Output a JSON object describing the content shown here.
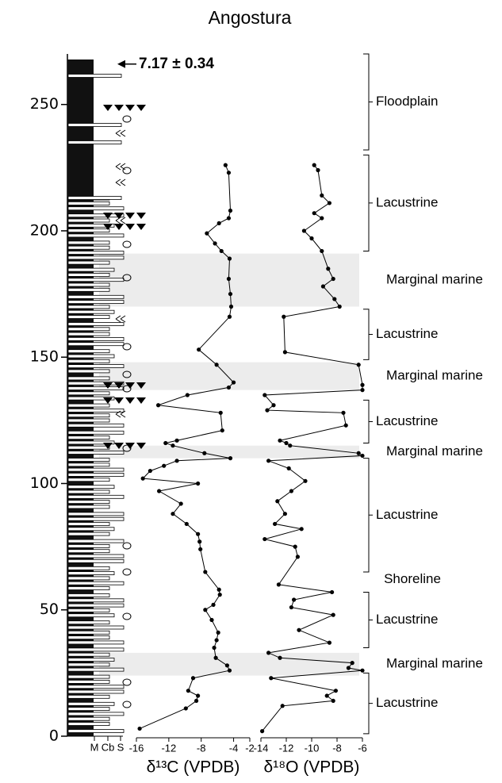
{
  "chart_data": {
    "type": "line",
    "title": "Angostura",
    "ylim": [
      0,
      270
    ],
    "yticks": [
      0,
      50,
      100,
      150,
      200,
      250
    ],
    "annotation": "7.17 ± 0.34",
    "annotation_height": 266,
    "column_labels": [
      "M",
      "Cb",
      "S"
    ],
    "panels": [
      {
        "xlabel": "δ¹³C (VPDB)",
        "xlim": [
          -16,
          -2
        ],
        "xticks": [
          -16,
          -12,
          -8,
          -4,
          -2
        ],
        "color": "#000000",
        "heights": [
          226,
          223,
          208,
          205,
          203,
          199,
          195,
          192,
          189,
          181,
          175,
          170,
          166,
          153,
          147,
          140,
          138,
          135,
          131,
          128,
          121,
          117,
          116,
          115,
          112,
          110,
          109,
          107,
          105,
          102,
          100,
          97,
          92,
          88,
          84,
          80,
          77,
          74,
          65,
          58,
          56,
          52,
          50,
          46,
          41,
          38,
          35,
          31,
          28,
          26,
          23,
          18,
          16,
          14,
          11,
          3
        ],
        "values": [
          -5.0,
          -4.6,
          -4.4,
          -4.6,
          -5.8,
          -7.3,
          -6.3,
          -5.5,
          -4.5,
          -4.6,
          -4.4,
          -4.3,
          -4.5,
          -8.3,
          -6.1,
          -4.0,
          -4.6,
          -9.7,
          -13.3,
          -5.6,
          -5.4,
          -11.0,
          -12.4,
          -11.5,
          -7.6,
          -4.4,
          -11.0,
          -12.6,
          -14.3,
          -15.2,
          -8.4,
          -13.2,
          -10.5,
          -11.5,
          -9.8,
          -8.4,
          -8.2,
          -8.1,
          -7.5,
          -5.8,
          -5.7,
          -6.5,
          -7.5,
          -6.7,
          -5.9,
          -6.1,
          -6.4,
          -6.2,
          -4.8,
          -4.5,
          -9.0,
          -9.6,
          -8.4,
          -8.6,
          -9.9,
          -15.6
        ]
      },
      {
        "xlabel": "δ¹⁸O (VPDB)",
        "xlim": [
          -14,
          -6
        ],
        "xticks": [
          -14,
          -12,
          -10,
          -8,
          -6
        ],
        "color": "#000000",
        "heights": [
          226,
          224,
          214,
          211,
          207,
          205,
          200,
          197,
          192,
          185,
          181,
          178,
          173,
          170,
          166,
          152,
          147,
          139,
          137,
          135,
          131,
          129,
          128,
          123,
          117,
          116,
          115,
          112,
          111,
          109,
          106,
          101,
          97,
          93,
          88,
          84,
          82,
          78,
          75,
          71,
          60,
          57,
          54,
          51,
          48,
          42,
          37,
          33,
          31,
          29,
          27,
          26,
          23,
          18,
          16,
          14,
          12,
          2
        ],
        "values": [
          -9.8,
          -9.5,
          -9.2,
          -8.6,
          -9.8,
          -9.2,
          -10.6,
          -10.0,
          -9.2,
          -8.7,
          -8.3,
          -9.1,
          -8.2,
          -7.8,
          -12.2,
          -12.1,
          -6.3,
          -6.0,
          -6.0,
          -13.7,
          -13.0,
          -13.5,
          -7.5,
          -7.3,
          -12.5,
          -12.0,
          -11.7,
          -6.3,
          -6.0,
          -13.4,
          -11.8,
          -10.5,
          -11.6,
          -12.7,
          -12.1,
          -12.9,
          -10.8,
          -13.7,
          -11.3,
          -11.1,
          -12.6,
          -8.4,
          -11.4,
          -11.6,
          -8.3,
          -11.0,
          -8.6,
          -13.4,
          -12.5,
          -6.8,
          -7.1,
          -6.0,
          -13.2,
          -8.1,
          -8.8,
          -8.3,
          -12.3,
          -13.9
        ]
      }
    ],
    "facies": [
      {
        "label": "Floodplain",
        "range": [
          232,
          270
        ],
        "bracket": true
      },
      {
        "label": "Lacustrine",
        "range": [
          192,
          230
        ],
        "bracket": true
      },
      {
        "label": "Marginal marine",
        "range": [
          170,
          191
        ],
        "shaded": true
      },
      {
        "label": "Lacustrine",
        "range": [
          149,
          169
        ],
        "bracket": true
      },
      {
        "label": "Marginal marine",
        "range": [
          137,
          148
        ],
        "shaded": true
      },
      {
        "label": "Lacustrine",
        "range": [
          116,
          133
        ],
        "bracket": true
      },
      {
        "label": "Marginal marine",
        "range": [
          110,
          115
        ],
        "shaded": true
      },
      {
        "label": "Lacustrine",
        "range": [
          65,
          110
        ],
        "bracket": true
      },
      {
        "label": "Shoreline",
        "range": [
          62,
          62
        ]
      },
      {
        "label": "Lacustrine",
        "range": [
          35,
          57
        ],
        "bracket": true
      },
      {
        "label": "Marginal marine",
        "range": [
          24,
          33
        ],
        "shaded": true
      },
      {
        "label": "Lacustrine",
        "range": [
          1,
          25
        ],
        "bracket": true
      }
    ]
  }
}
